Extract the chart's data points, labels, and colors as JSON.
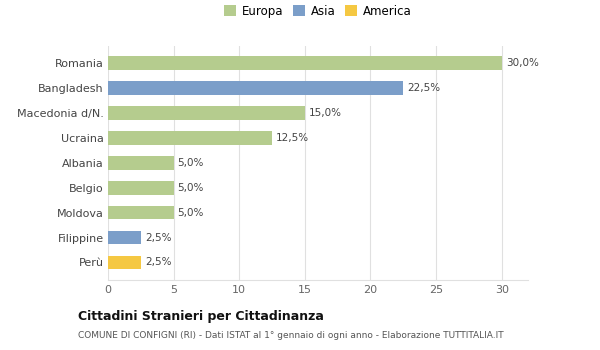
{
  "countries": [
    "Romania",
    "Bangladesh",
    "Macedonia d/N.",
    "Ucraina",
    "Albania",
    "Belgio",
    "Moldova",
    "Filippine",
    "Perù"
  ],
  "values": [
    30.0,
    22.5,
    15.0,
    12.5,
    5.0,
    5.0,
    5.0,
    2.5,
    2.5
  ],
  "labels": [
    "30,0%",
    "22,5%",
    "15,0%",
    "12,5%",
    "5,0%",
    "5,0%",
    "5,0%",
    "2,5%",
    "2,5%"
  ],
  "bar_colors": [
    "#b5cc8e",
    "#7b9ec9",
    "#b5cc8e",
    "#b5cc8e",
    "#b5cc8e",
    "#b5cc8e",
    "#b5cc8e",
    "#7b9ec9",
    "#f5c842"
  ],
  "legend": [
    {
      "label": "Europa",
      "color": "#b5cc8e"
    },
    {
      "label": "Asia",
      "color": "#7b9ec9"
    },
    {
      "label": "America",
      "color": "#f5c842"
    }
  ],
  "xlim": [
    0,
    32
  ],
  "xticks": [
    0,
    5,
    10,
    15,
    20,
    25,
    30
  ],
  "title": "Cittadini Stranieri per Cittadinanza",
  "subtitle": "COMUNE DI CONFIGNI (RI) - Dati ISTAT al 1° gennaio di ogni anno - Elaborazione TUTTITALIA.IT",
  "background_color": "#ffffff",
  "grid_color": "#e0e0e0"
}
